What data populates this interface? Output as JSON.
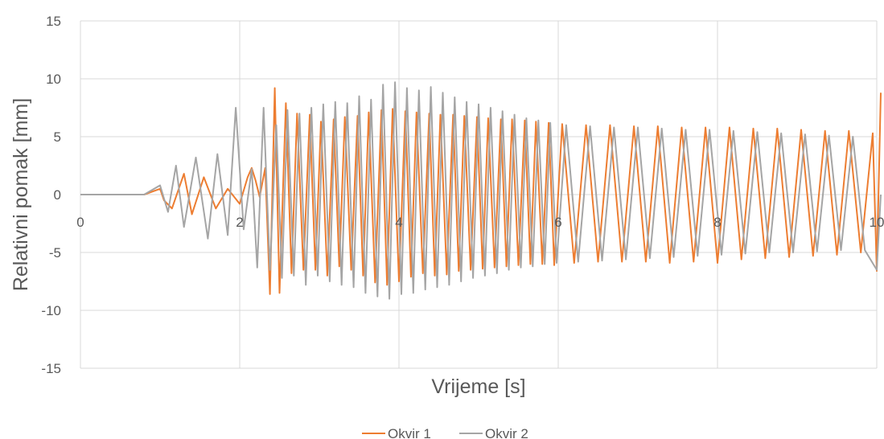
{
  "chart_data": {
    "type": "line",
    "title": "",
    "xlabel": "Vrijeme [s]",
    "ylabel": "Relativni pomak [mm]",
    "xlim": [
      0,
      10
    ],
    "ylim": [
      -15,
      15
    ],
    "x_ticks": [
      0,
      2,
      4,
      6,
      8,
      10
    ],
    "x_tick_labels": [
      "0",
      "2",
      "4",
      "6",
      "8",
      "10"
    ],
    "y_ticks": [
      -15,
      -10,
      -5,
      0,
      5,
      10,
      15
    ],
    "y_tick_labels": [
      "-15",
      "-10",
      "-5",
      "0",
      "5",
      "10",
      "15"
    ],
    "grid": true,
    "legend_position": "bottom",
    "series": [
      {
        "name": "Okvir 1",
        "color": "#ED7D31",
        "x": [
          0,
          0.8,
          1.0,
          1.05,
          1.15,
          1.3,
          1.4,
          1.55,
          1.7,
          1.85,
          2.0,
          2.1,
          2.15,
          2.2,
          2.25,
          2.32,
          2.38,
          2.44,
          2.5,
          2.58,
          2.65,
          2.72,
          2.8,
          2.88,
          2.95,
          3.02,
          3.1,
          3.18,
          3.25,
          3.32,
          3.4,
          3.48,
          3.55,
          3.62,
          3.7,
          3.78,
          3.85,
          3.92,
          4.0,
          4.08,
          4.15,
          4.22,
          4.3,
          4.38,
          4.45,
          4.52,
          4.6,
          4.68,
          4.75,
          4.82,
          4.9,
          4.98,
          5.05,
          5.12,
          5.2,
          5.28,
          5.35,
          5.42,
          5.5,
          5.58,
          5.65,
          5.72,
          5.8,
          5.88,
          5.95,
          6.05,
          6.2,
          6.35,
          6.5,
          6.65,
          6.8,
          6.95,
          7.1,
          7.25,
          7.4,
          7.55,
          7.7,
          7.85,
          8.0,
          8.15,
          8.3,
          8.45,
          8.6,
          8.75,
          8.9,
          9.05,
          9.2,
          9.35,
          9.5,
          9.65,
          9.8,
          9.95,
          10.0,
          10.05
        ],
        "y": [
          0,
          0,
          0.5,
          -0.5,
          -1.2,
          1.8,
          -1.7,
          1.5,
          -1.2,
          0.5,
          -0.8,
          1.5,
          2.3,
          1.2,
          -0.2,
          2.3,
          -8.6,
          9.2,
          -8.5,
          7.9,
          -6.8,
          7.0,
          -6.5,
          6.9,
          -6.5,
          6.3,
          -7.0,
          6.5,
          -6.2,
          6.7,
          -6.5,
          6.8,
          -7.0,
          7.1,
          -7.6,
          7.3,
          -7.8,
          7.4,
          -7.5,
          7.2,
          -7.1,
          7.1,
          -6.8,
          7.0,
          -7.0,
          6.9,
          -6.9,
          6.9,
          -6.6,
          6.8,
          -6.5,
          6.7,
          -6.4,
          6.6,
          -6.3,
          6.5,
          -6.2,
          6.5,
          -6.1,
          6.4,
          -6.0,
          6.3,
          -6.0,
          6.2,
          -6.1,
          6.1,
          -5.9,
          6.0,
          -5.8,
          6.0,
          -5.8,
          5.9,
          -5.8,
          5.9,
          -5.9,
          5.8,
          -5.8,
          5.8,
          -5.9,
          5.8,
          -5.6,
          5.7,
          -5.5,
          5.7,
          -5.4,
          5.6,
          -5.3,
          5.5,
          -5.2,
          5.5,
          -5.0,
          5.3,
          -6.6,
          8.8
        ]
      },
      {
        "name": "Okvir 2",
        "color": "#A5A5A5",
        "x": [
          0,
          0.8,
          1.0,
          1.1,
          1.2,
          1.3,
          1.45,
          1.6,
          1.72,
          1.85,
          1.95,
          2.05,
          2.15,
          2.22,
          2.3,
          2.38,
          2.46,
          2.53,
          2.6,
          2.68,
          2.75,
          2.83,
          2.9,
          2.98,
          3.05,
          3.13,
          3.2,
          3.28,
          3.35,
          3.43,
          3.5,
          3.58,
          3.65,
          3.73,
          3.8,
          3.88,
          3.95,
          4.03,
          4.1,
          4.18,
          4.25,
          4.33,
          4.4,
          4.48,
          4.55,
          4.63,
          4.7,
          4.78,
          4.85,
          4.93,
          5.0,
          5.08,
          5.15,
          5.23,
          5.3,
          5.38,
          5.45,
          5.53,
          5.6,
          5.68,
          5.75,
          5.83,
          5.9,
          5.98,
          6.1,
          6.25,
          6.4,
          6.55,
          6.7,
          6.85,
          7.0,
          7.15,
          7.3,
          7.45,
          7.6,
          7.75,
          7.9,
          8.05,
          8.2,
          8.35,
          8.5,
          8.65,
          8.8,
          8.95,
          9.1,
          9.25,
          9.4,
          9.55,
          9.7,
          9.85,
          10.0,
          10.05
        ],
        "y": [
          0,
          0,
          0.8,
          -1.5,
          2.5,
          -2.8,
          3.2,
          -3.8,
          3.5,
          -3.5,
          7.5,
          -3.0,
          2.2,
          -6.3,
          7.5,
          -6.5,
          6.0,
          -7.2,
          7.3,
          -7.0,
          7.0,
          -7.8,
          7.5,
          -7.0,
          7.8,
          -7.5,
          8.0,
          -7.8,
          7.9,
          -8.0,
          8.5,
          -8.5,
          8.2,
          -8.8,
          9.5,
          -9.0,
          9.7,
          -8.6,
          9.2,
          -8.5,
          9.0,
          -8.2,
          9.3,
          -8.0,
          8.8,
          -7.8,
          8.4,
          -7.5,
          8.0,
          -7.2,
          7.8,
          -7.0,
          7.5,
          -6.8,
          7.2,
          -6.5,
          6.9,
          -6.3,
          6.6,
          -6.2,
          6.4,
          -6.0,
          6.2,
          -5.9,
          6.0,
          -5.8,
          5.9,
          -5.7,
          5.8,
          -5.6,
          5.8,
          -5.5,
          5.7,
          -5.4,
          5.6,
          -5.3,
          5.6,
          -5.2,
          5.5,
          -5.1,
          5.4,
          -5.0,
          5.3,
          -5.0,
          5.2,
          -4.9,
          5.1,
          -4.8,
          5.0,
          -4.8,
          -6.5,
          0
        ]
      }
    ]
  }
}
